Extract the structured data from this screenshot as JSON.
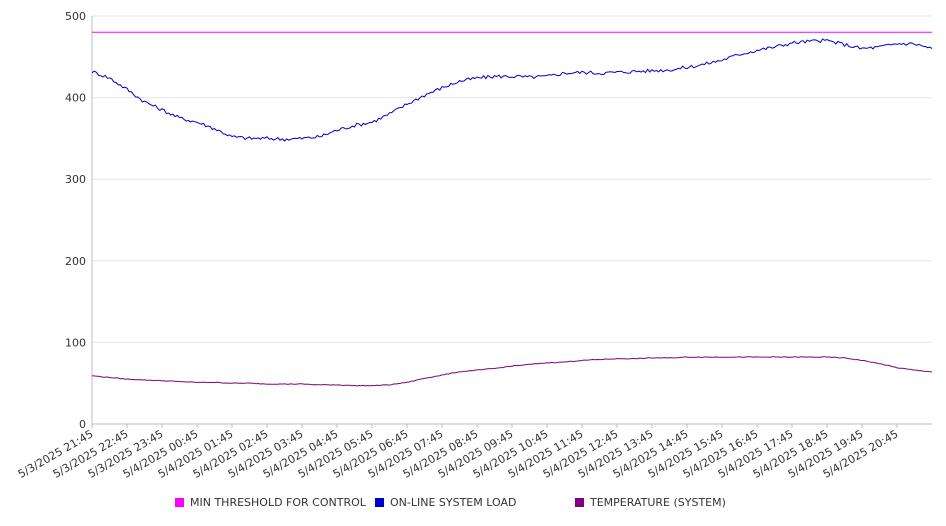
{
  "chart_data": {
    "type": "line",
    "title": "",
    "xlabel": "",
    "ylabel": "",
    "ylim": [
      0,
      500
    ],
    "yticks": [
      0,
      100,
      200,
      300,
      400,
      500
    ],
    "grid": "horizontal",
    "legend_position": "bottom",
    "x_tick_labels": [
      "5/3/2025 21:45",
      "5/3/2025 22:45",
      "5/3/2025 23:45",
      "5/4/2025 00:45",
      "5/4/2025 01:45",
      "5/4/2025 02:45",
      "5/4/2025 03:45",
      "5/4/2025 04:45",
      "5/4/2025 05:45",
      "5/4/2025 06:45",
      "5/4/2025 07:45",
      "5/4/2025 08:45",
      "5/4/2025 09:45",
      "5/4/2025 10:45",
      "5/4/2025 11:45",
      "5/4/2025 12:45",
      "5/4/2025 13:45",
      "5/4/2025 14:45",
      "5/4/2025 15:45",
      "5/4/2025 16:45",
      "5/4/2025 17:45",
      "5/4/2025 18:45",
      "5/4/2025 19:45",
      "5/4/2025 20:45"
    ],
    "x": [
      "5/3/2025 21:45",
      "5/3/2025 22:15",
      "5/3/2025 22:45",
      "5/3/2025 23:15",
      "5/3/2025 23:45",
      "5/4/2025 00:15",
      "5/4/2025 00:45",
      "5/4/2025 01:15",
      "5/4/2025 01:45",
      "5/4/2025 02:15",
      "5/4/2025 02:45",
      "5/4/2025 03:15",
      "5/4/2025 03:45",
      "5/4/2025 04:15",
      "5/4/2025 04:45",
      "5/4/2025 05:15",
      "5/4/2025 05:45",
      "5/4/2025 06:15",
      "5/4/2025 06:45",
      "5/4/2025 07:15",
      "5/4/2025 07:45",
      "5/4/2025 08:15",
      "5/4/2025 08:45",
      "5/4/2025 09:15",
      "5/4/2025 09:45",
      "5/4/2025 10:15",
      "5/4/2025 10:45",
      "5/4/2025 11:15",
      "5/4/2025 11:45",
      "5/4/2025 12:15",
      "5/4/2025 12:45",
      "5/4/2025 13:15",
      "5/4/2025 13:45",
      "5/4/2025 14:15",
      "5/4/2025 14:45",
      "5/4/2025 15:15",
      "5/4/2025 15:45",
      "5/4/2025 16:15",
      "5/4/2025 16:45",
      "5/4/2025 17:15",
      "5/4/2025 17:45",
      "5/4/2025 18:15",
      "5/4/2025 18:45",
      "5/4/2025 19:15",
      "5/4/2025 19:45",
      "5/4/2025 20:15",
      "5/4/2025 20:45",
      "5/4/2025 21:15",
      "5/4/2025 21:45"
    ],
    "series": [
      {
        "name": "MIN THRESHOLD FOR CONTROL",
        "color": "#ff00ff",
        "values": [
          480,
          480,
          480,
          480,
          480,
          480,
          480,
          480,
          480,
          480,
          480,
          480,
          480,
          480,
          480,
          480,
          480,
          480,
          480,
          480,
          480,
          480,
          480,
          480,
          480,
          480,
          480,
          480,
          480,
          480,
          480,
          480,
          480,
          480,
          480,
          480,
          480,
          480,
          480,
          480,
          480,
          480,
          480,
          480,
          480,
          480,
          480,
          480,
          480
        ]
      },
      {
        "name": "ON-LINE SYSTEM LOAD",
        "color": "#0000cc",
        "values": [
          432,
          424,
          410,
          395,
          385,
          375,
          370,
          362,
          352,
          350,
          350,
          349,
          350,
          352,
          360,
          366,
          370,
          380,
          392,
          403,
          412,
          420,
          424,
          426,
          426,
          425,
          426,
          430,
          431,
          430,
          431,
          432,
          433,
          434,
          437,
          441,
          446,
          453,
          458,
          462,
          467,
          469,
          470,
          465,
          460,
          462,
          466,
          466,
          460
        ]
      },
      {
        "name": "TEMPERATURE (SYSTEM)",
        "color": "#800080",
        "values": [
          59,
          57,
          55,
          54,
          53,
          52,
          51,
          51,
          50,
          50,
          49,
          49,
          49,
          48,
          48,
          47,
          47,
          48,
          51,
          56,
          60,
          64,
          66,
          68,
          71,
          73,
          75,
          76,
          78,
          79,
          80,
          80,
          81,
          81,
          82,
          82,
          82,
          82,
          82,
          82,
          82,
          82,
          82,
          81,
          78,
          74,
          69,
          66,
          64
        ]
      }
    ]
  }
}
